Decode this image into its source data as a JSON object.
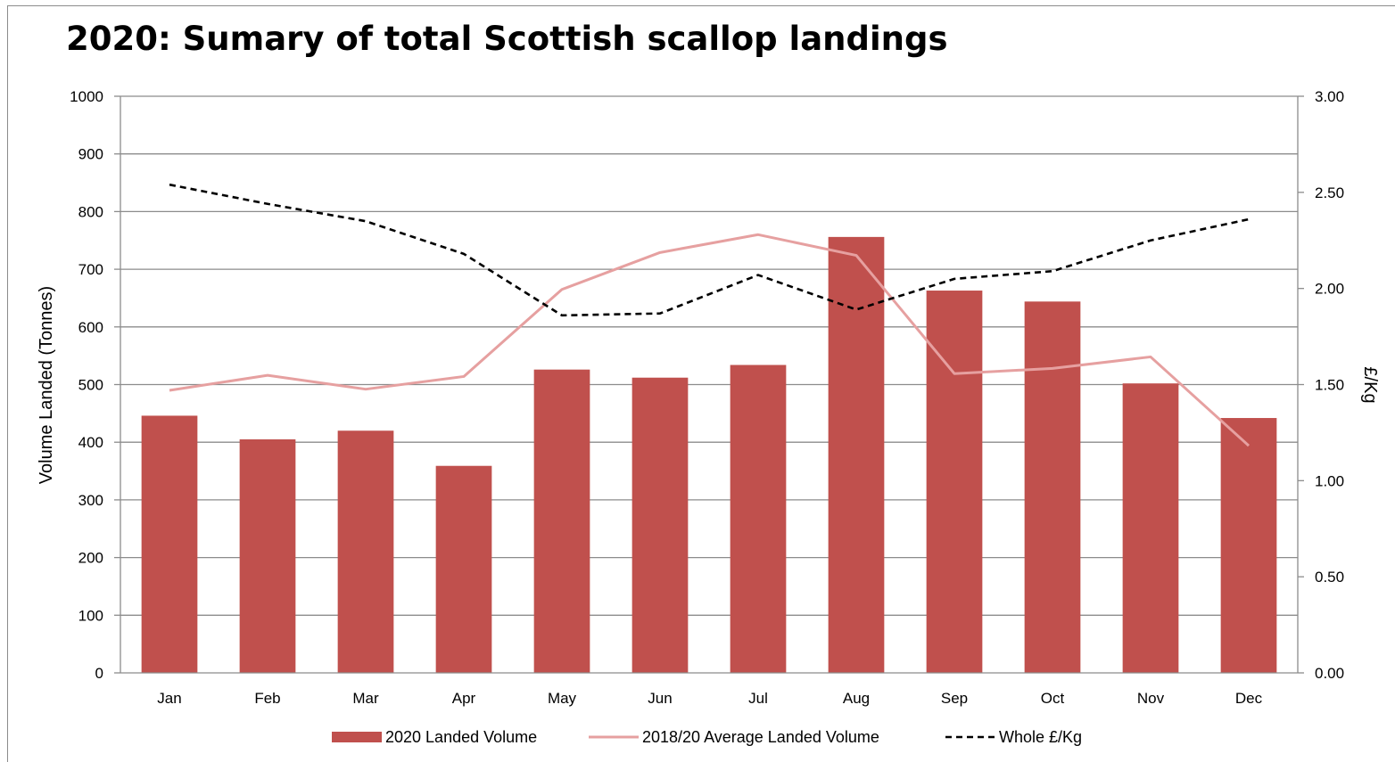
{
  "chart_data": {
    "type": "bar",
    "title": "2020: Sumary of total Scottish scallop landings",
    "categories": [
      "Jan",
      "Feb",
      "Mar",
      "Apr",
      "May",
      "Jun",
      "Jul",
      "Aug",
      "Sep",
      "Oct",
      "Nov",
      "Dec"
    ],
    "ylabel": "Volume Landed (Tonnes)",
    "y2label": "£/Kg",
    "ylim": [
      0,
      1000
    ],
    "y2lim": [
      0,
      3
    ],
    "yticks": [
      "0",
      "100",
      "200",
      "300",
      "400",
      "500",
      "600",
      "700",
      "800",
      "900",
      "1000"
    ],
    "y2ticks": [
      "0.00",
      "0.50",
      "1.00",
      "1.50",
      "2.00",
      "2.50",
      "3.00"
    ],
    "grid": true,
    "legend_position": "bottom",
    "series": [
      {
        "name": "2020  Landed Volume",
        "type": "bar",
        "axis": "left",
        "color": "#c0504d",
        "values": [
          446,
          405,
          420,
          359,
          526,
          512,
          534,
          756,
          663,
          644,
          502,
          442
        ]
      },
      {
        "name": "2018/20 Average Landed Volume",
        "type": "line",
        "axis": "left",
        "color": "#e6a0a0",
        "values": [
          490,
          516,
          492,
          514,
          665,
          729,
          760,
          724,
          519,
          528,
          548,
          394
        ]
      },
      {
        "name": "Whole £/Kg",
        "type": "line",
        "dash": true,
        "axis": "right",
        "color": "#000000",
        "values": [
          2.54,
          2.44,
          2.35,
          2.18,
          1.86,
          1.87,
          2.07,
          1.89,
          2.05,
          2.09,
          2.25,
          2.36
        ]
      }
    ]
  }
}
